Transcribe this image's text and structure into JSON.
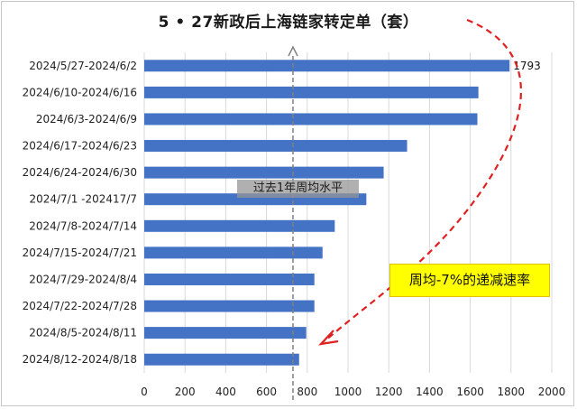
{
  "chart_data": {
    "type": "bar",
    "orientation": "horizontal",
    "title": "5 • 27新政后上海链家转定单（套）",
    "categories": [
      "2024/5/27-2024/6/2",
      "2024/6/10-2024/6/16",
      "2024/6/3-2024/6/9",
      "2024/6/17-2024/6/23",
      "2024/6/24-2024/6/30",
      "2024/7/1 -202417/7",
      "2024/7/8-2024/7/14",
      "2024/7/15-2024/7/21",
      "2024/7/29-2024/8/4",
      "2024/7/22-2024/7/28",
      "2024/8/5-2024/8/11",
      "2024/8/12-2024/8/18"
    ],
    "values": [
      1793,
      1640,
      1635,
      1290,
      1175,
      1090,
      935,
      875,
      835,
      835,
      795,
      760
    ],
    "data_labels": [
      {
        "index": 0,
        "text": "1793"
      }
    ],
    "xlim": [
      0,
      2000
    ],
    "xticks": [
      "0",
      "200",
      "400",
      "600",
      "800",
      "1000",
      "1200",
      "1400",
      "1600",
      "1800",
      "2000"
    ],
    "grid": true,
    "bar_color": "#4472c4",
    "reference_line": {
      "value": 730,
      "label": "过去1年周均水平",
      "style": "dashed",
      "color": "#808080"
    },
    "annotation": {
      "text": "周均-7%的递减速率",
      "background": "#ffff00",
      "arrow_color": "#e02020"
    }
  }
}
